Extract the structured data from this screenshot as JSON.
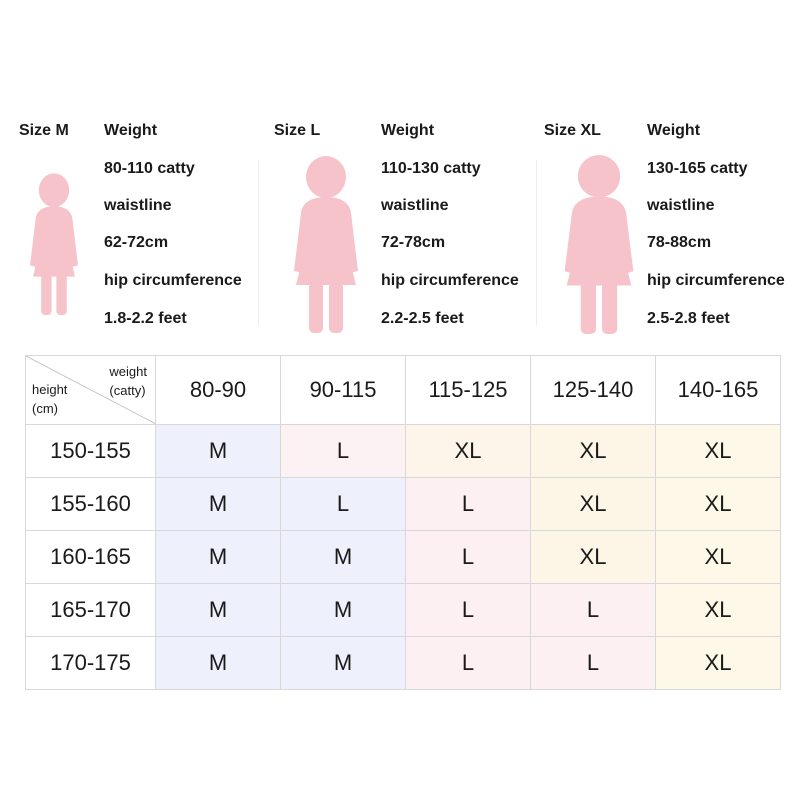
{
  "profiles": [
    {
      "size": "Size M",
      "specs": [
        "Weight",
        "80-110 catty",
        "waistline",
        "62-72cm",
        "hip circumference",
        "1.8-2.2 feet"
      ]
    },
    {
      "size": "Size L",
      "specs": [
        "Weight",
        "110-130 catty",
        "waistline",
        "72-78cm",
        "hip circumference",
        "2.2-2.5 feet"
      ]
    },
    {
      "size": "Size XL",
      "specs": [
        "Weight",
        "130-165 catty",
        "waistline",
        "78-88cm",
        "hip circumference",
        "2.5-2.8 feet"
      ]
    }
  ],
  "figure_color": "#f6c3cb",
  "table": {
    "corner_weight_lines": [
      "weight",
      "(catty)"
    ],
    "corner_height_lines": [
      "height",
      "(cm)"
    ],
    "columns": [
      "80-90",
      "90-115",
      "115-125",
      "125-140",
      "140-165"
    ],
    "rows": [
      {
        "height": "150-155",
        "sizes": [
          "M",
          "L",
          "XL",
          "XL",
          "XL"
        ]
      },
      {
        "height": "155-160",
        "sizes": [
          "M",
          "L",
          "L",
          "XL",
          "XL"
        ]
      },
      {
        "height": "160-165",
        "sizes": [
          "M",
          "M",
          "L",
          "XL",
          "XL"
        ]
      },
      {
        "height": "165-170",
        "sizes": [
          "M",
          "M",
          "L",
          "L",
          "XL"
        ]
      },
      {
        "height": "170-175",
        "sizes": [
          "M",
          "M",
          "L",
          "L",
          "XL"
        ]
      }
    ]
  }
}
